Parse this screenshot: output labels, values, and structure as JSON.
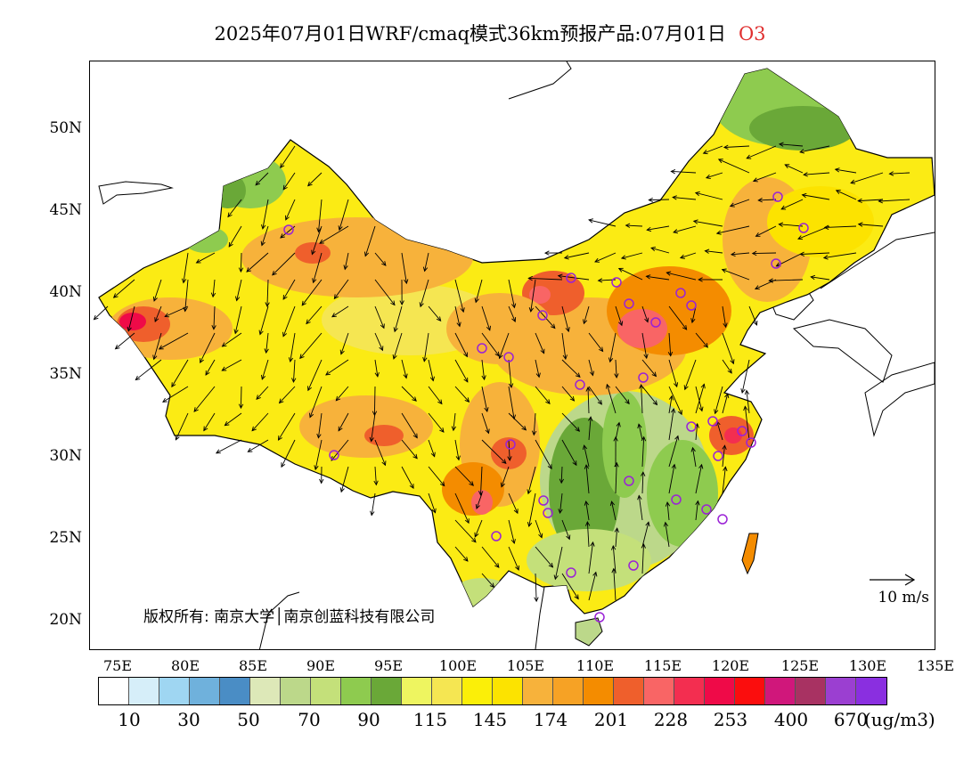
{
  "title": {
    "main": "2025年07月01日WRF/cmaq模式36km预报产品:07月01日",
    "species": "O3"
  },
  "map": {
    "lat_labels": [
      "50N",
      "45N",
      "40N",
      "35N",
      "30N",
      "25N",
      "20N"
    ],
    "lon_labels": [
      "75E",
      "80E",
      "85E",
      "90E",
      "95E",
      "100E",
      "105E",
      "110E",
      "115E",
      "120E",
      "125E",
      "130E",
      "135E"
    ],
    "wind_scale_label": "10 m/s",
    "copyright": "版权所有: 南京大学│南京创蓝科技有限公司",
    "station_marker_color": "#9a22d6"
  },
  "colorbar": {
    "colors": [
      "#ffffff",
      "#d6eef9",
      "#9fd6f2",
      "#6fb1dc",
      "#4a8dc5",
      "#dde8b8",
      "#bcd88a",
      "#c4e07a",
      "#8ecb4f",
      "#6aa838",
      "#eef560",
      "#f5e652",
      "#fbef08",
      "#fce300",
      "#f7b23b",
      "#f6a225",
      "#f48c00",
      "#ef5f2c",
      "#f96565",
      "#f32e50",
      "#ef0a48",
      "#fb0d0d",
      "#d0177b",
      "#a83262",
      "#9b3fd1",
      "#8a2fe0"
    ],
    "labels": [
      "10",
      "30",
      "50",
      "70",
      "90",
      "115",
      "145",
      "174",
      "201",
      "228",
      "253",
      "400",
      "670"
    ],
    "unit": "(ug/m3)"
  }
}
